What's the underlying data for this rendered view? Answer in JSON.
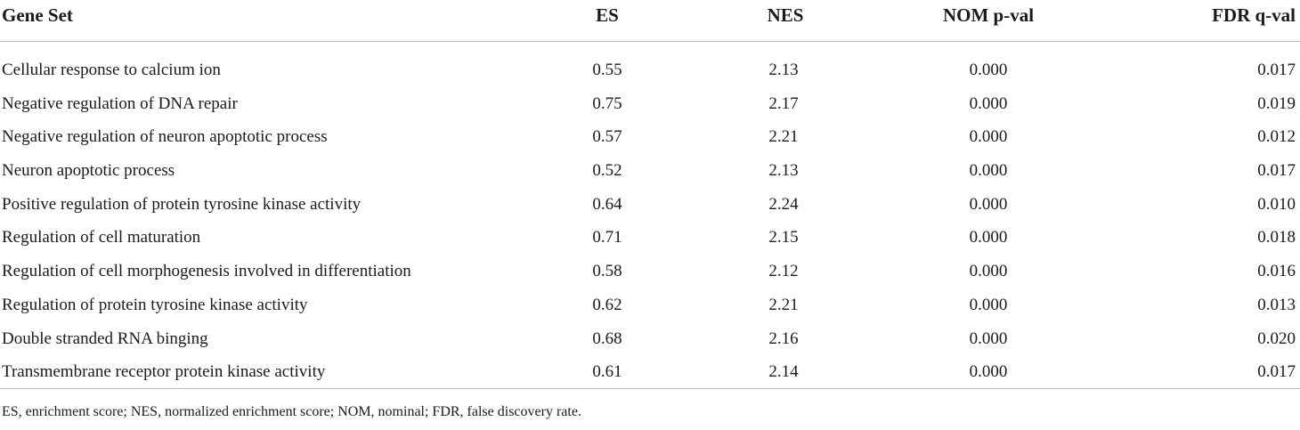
{
  "table": {
    "headers": [
      "Gene Set",
      "ES",
      "NES",
      "NOM p-val",
      "FDR q-val"
    ],
    "rows": [
      [
        "Cellular response to calcium ion",
        "0.55",
        "2.13",
        "0.000",
        "0.017"
      ],
      [
        "Negative regulation of DNA repair",
        "0.75",
        "2.17",
        "0.000",
        "0.019"
      ],
      [
        "Negative regulation of neuron apoptotic process",
        "0.57",
        "2.21",
        "0.000",
        "0.012"
      ],
      [
        "Neuron apoptotic process",
        "0.52",
        "2.13",
        "0.000",
        "0.017"
      ],
      [
        "Positive regulation of protein tyrosine kinase activity",
        "0.64",
        "2.24",
        "0.000",
        "0.010"
      ],
      [
        "Regulation of cell maturation",
        "0.71",
        "2.15",
        "0.000",
        "0.018"
      ],
      [
        "Regulation of cell morphogenesis involved in differentiation",
        "0.58",
        "2.12",
        "0.000",
        "0.016"
      ],
      [
        "Regulation of protein tyrosine kinase activity",
        "0.62",
        "2.21",
        "0.000",
        "0.013"
      ],
      [
        "Double stranded RNA binging",
        "0.68",
        "2.16",
        "0.000",
        "0.020"
      ],
      [
        "Transmembrane receptor protein kinase activity",
        "0.61",
        "2.14",
        "0.000",
        "0.017"
      ]
    ]
  },
  "footnote": "ES, enrichment score; NES, normalized enrichment score; NOM, nominal; FDR, false discovery rate."
}
